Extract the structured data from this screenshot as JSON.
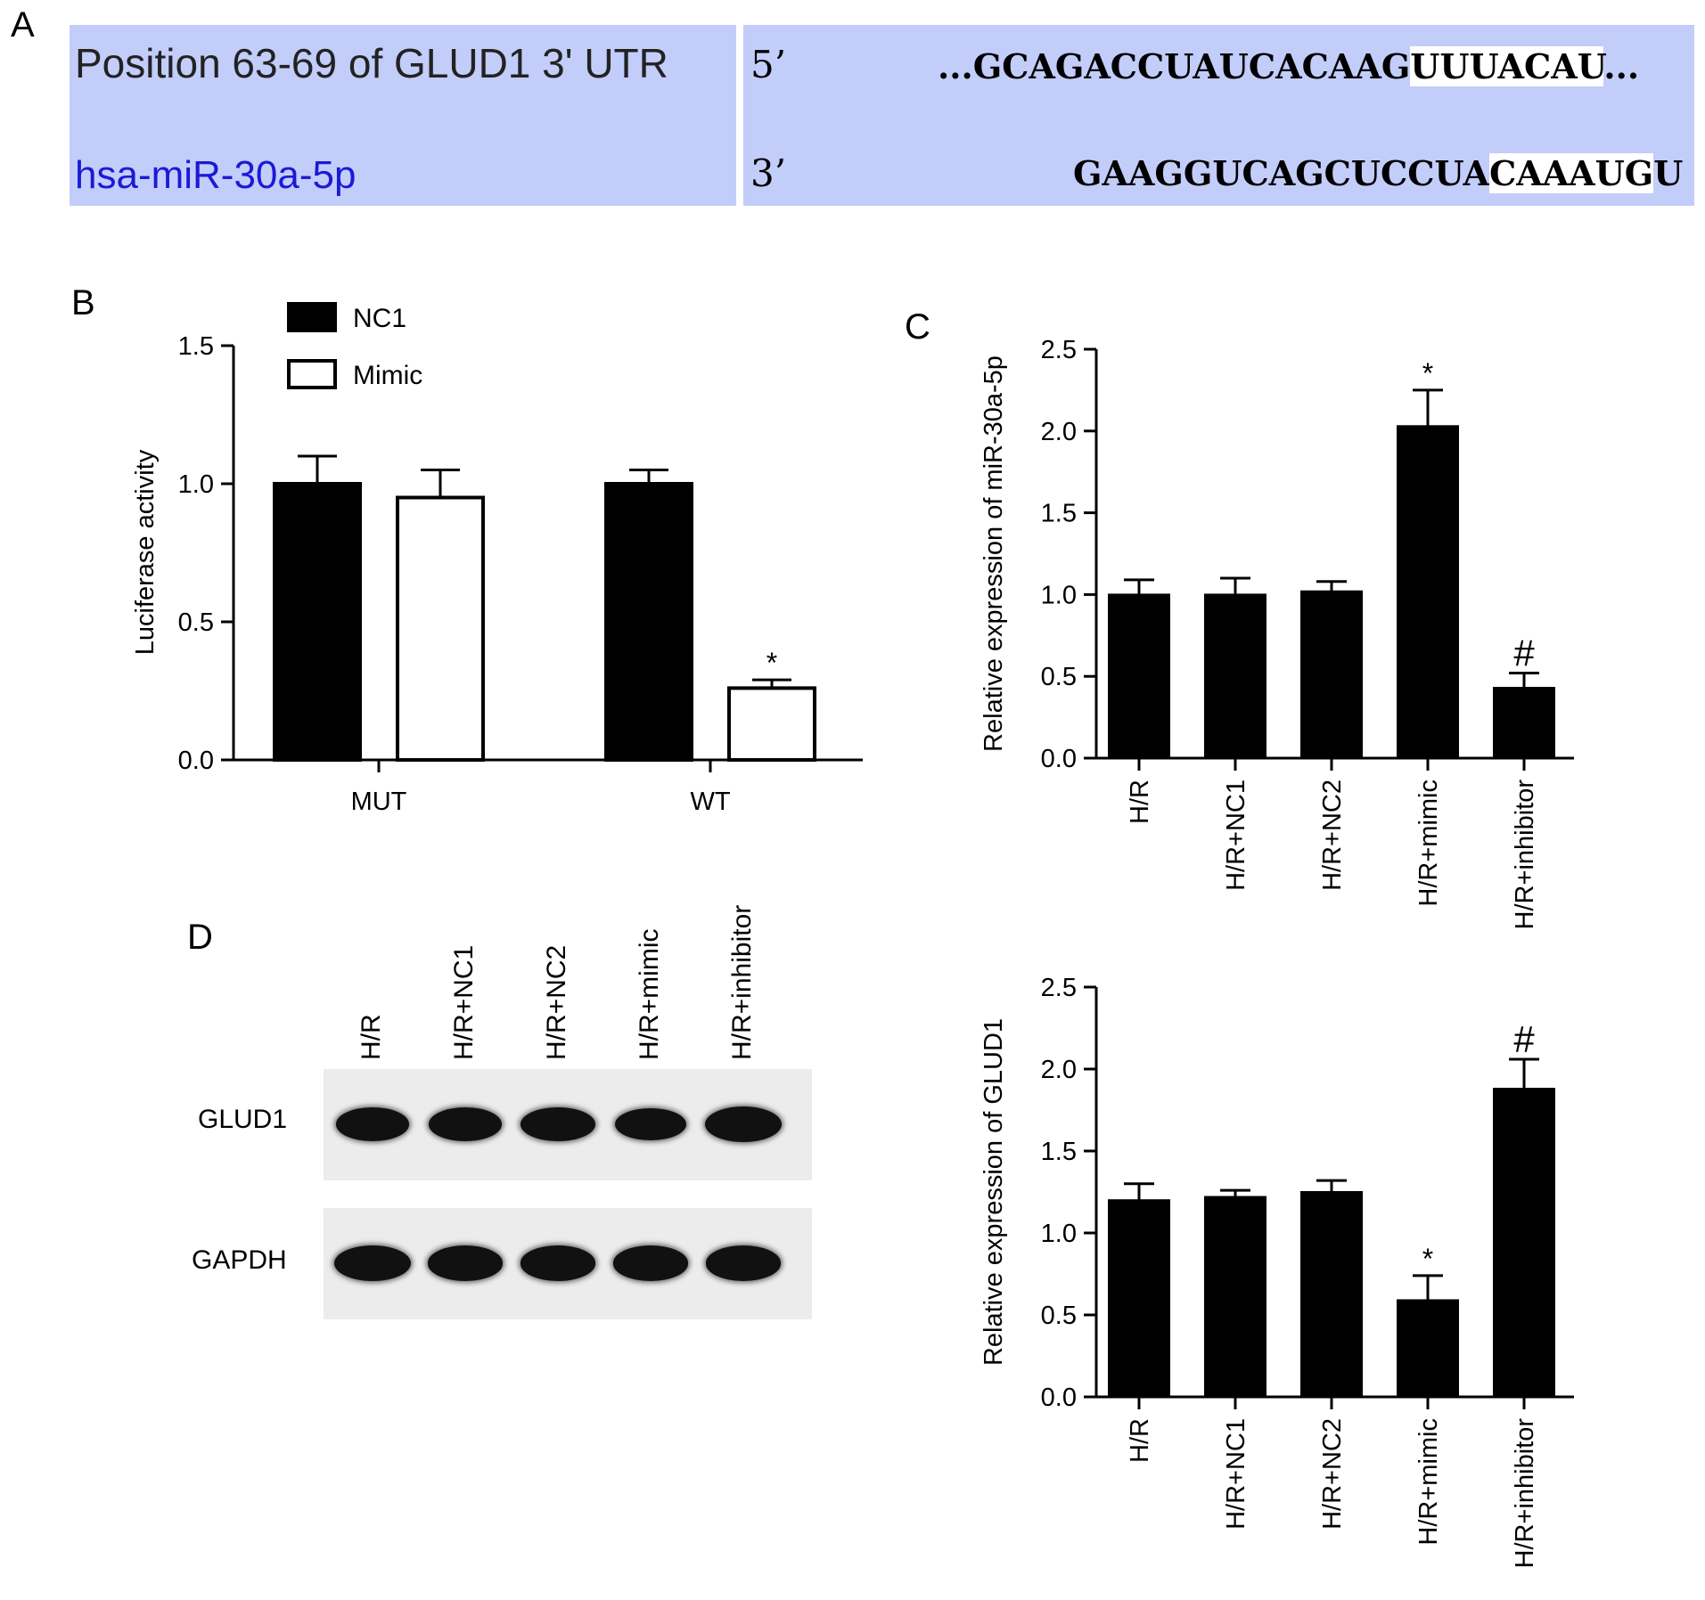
{
  "panel_labels": {
    "a": "A",
    "b": "B",
    "c": "C",
    "d": "D"
  },
  "panel_a": {
    "target_label": "Position 63-69 of GLUD1 3' UTR",
    "mirna_label": "hsa-miR-30a-5p",
    "target_end": "5’",
    "mirna_end": "3’",
    "target_prefix": "...GCAGACCUAUCACAAG",
    "target_seed": "UUUACAU",
    "target_suffix": "...",
    "mirna_prefix": "GAAGGUCAGCUCCUA",
    "mirna_seed": "CAAAUG",
    "mirna_suffix": "U",
    "label_color": "#1a1ad6",
    "box_color": "#c3cdfa"
  },
  "chart_data": [
    {
      "id": "B",
      "type": "bar",
      "categories": [
        "MUT",
        "WT"
      ],
      "series": [
        {
          "name": "NC1",
          "values": [
            1.0,
            1.0
          ],
          "errors": [
            0.1,
            0.05
          ],
          "fill": "#000000"
        },
        {
          "name": "Mimic",
          "values": [
            0.95,
            0.26
          ],
          "errors": [
            0.1,
            0.03
          ],
          "fill": "#ffffff"
        }
      ],
      "annotations": [
        {
          "category": 1,
          "series": 1,
          "text": "*"
        }
      ],
      "ylabel": "Luciferase activity",
      "ylim": [
        0,
        1.5
      ],
      "yticks": [
        "0.0",
        "0.5",
        "1.0",
        "1.5"
      ],
      "legend_placement": "top-left"
    },
    {
      "id": "C-top",
      "type": "bar",
      "categories": [
        "H/R",
        "H/R+NC1",
        "H/R+NC2",
        "H/R+mimic",
        "H/R+inhibitor"
      ],
      "values": [
        1.0,
        1.0,
        1.02,
        2.03,
        0.43
      ],
      "errors": [
        0.09,
        0.1,
        0.06,
        0.22,
        0.09
      ],
      "annotations": [
        "",
        "",
        "",
        "*",
        "#"
      ],
      "ylabel": "Relative expression of miR-30a-5p",
      "ylim": [
        0,
        2.5
      ],
      "yticks": [
        "0.0",
        "0.5",
        "1.0",
        "1.5",
        "2.0",
        "2.5"
      ]
    },
    {
      "id": "C-bottom",
      "type": "bar",
      "categories": [
        "H/R",
        "H/R+NC1",
        "H/R+NC2",
        "H/R+mimic",
        "H/R+inhibitor"
      ],
      "values": [
        1.2,
        1.22,
        1.25,
        0.59,
        1.88
      ],
      "errors": [
        0.1,
        0.04,
        0.07,
        0.15,
        0.18
      ],
      "annotations": [
        "",
        "",
        "",
        "*",
        "#"
      ],
      "ylabel": "Relative expression of GLUD1",
      "ylim": [
        0,
        2.5
      ],
      "yticks": [
        "0.0",
        "0.5",
        "1.0",
        "1.5",
        "2.0",
        "2.5"
      ]
    }
  ],
  "panel_d": {
    "lanes": [
      "H/R",
      "H/R+NC1",
      "H/R+NC2",
      "H/R+mimic",
      "H/R+inhibitor"
    ],
    "rows": [
      {
        "label": "GLUD1",
        "band_intensity": [
          0.85,
          0.85,
          0.9,
          0.75,
          1.0
        ]
      },
      {
        "label": "GAPDH",
        "band_intensity": [
          1.0,
          0.95,
          0.95,
          0.95,
          0.95
        ]
      }
    ]
  }
}
